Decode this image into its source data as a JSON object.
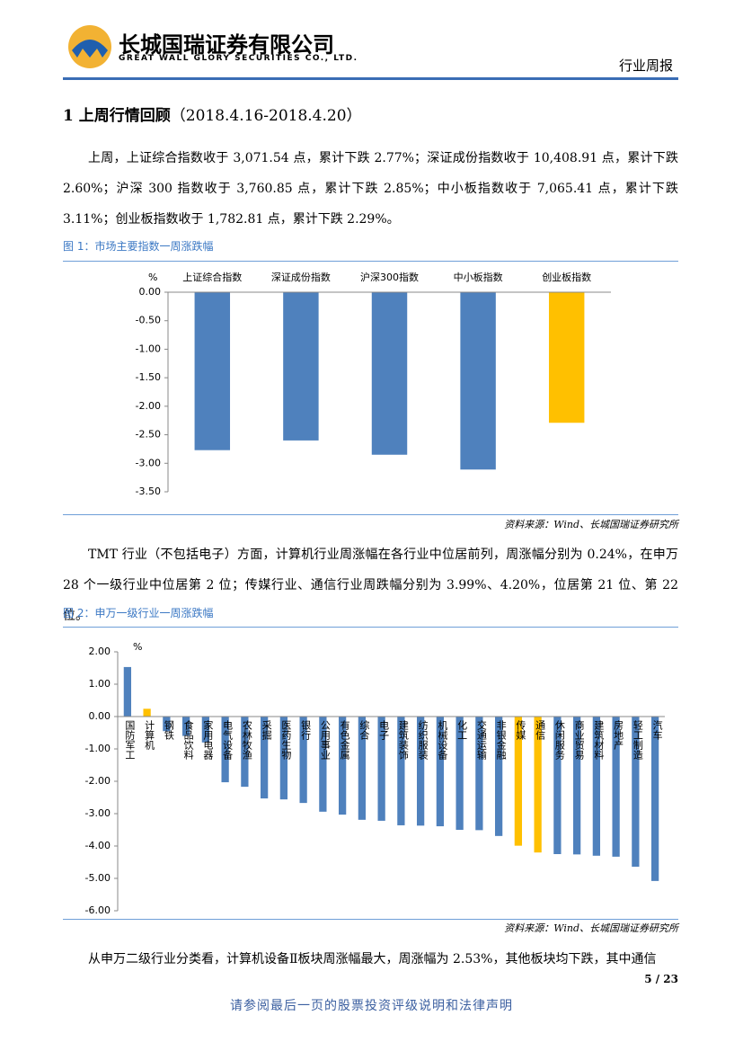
{
  "header": {
    "company_cn": "长城国瑞证券有限公司",
    "company_en": "GREAT WALL GLORY SECURITIES CO., LTD.",
    "doc_type": "行业周报"
  },
  "section": {
    "title": "1 上周行情回顾",
    "period": "（2018.4.16-2018.4.20）"
  },
  "paragraphs": [
    "上周，上证综合指数收于 3,071.54 点，累计下跌 2.77%；深证成份指数收于 10,408.91 点，累计下跌 2.60%；沪深 300 指数收于 3,760.85 点，累计下跌 2.85%；中小板指数收于 7,065.41 点，累计下跌 3.11%；创业板指数收于 1,782.81 点，累计下跌 2.29%。",
    "TMT 行业（不包括电子）方面，计算机行业周涨幅在各行业中位居前列，周涨幅分别为 0.24%，在申万 28 个一级行业中位居第 2 位；传媒行业、通信行业周跌幅分别为 3.99%、4.20%，位居第 21 位、第 22 位。",
    "从申万二级行业分类看，计算机设备Ⅱ板块周涨幅最大，周涨幅为 2.53%，其他板块均下跌，其中通信"
  ],
  "chart_data": [
    {
      "type": "bar",
      "title": "图 1：市场主要指数一周涨跌幅",
      "unit": "%",
      "categories": [
        "上证综合指数",
        "深证成份指数",
        "沪深300指数",
        "中小板指数",
        "创业板指数"
      ],
      "values": [
        -2.77,
        -2.6,
        -2.85,
        -3.11,
        -2.29
      ],
      "colors": [
        "#4f81bd",
        "#4f81bd",
        "#4f81bd",
        "#4f81bd",
        "#ffc000"
      ],
      "ylim": [
        -3.5,
        0
      ],
      "yticks": [
        {
          "value": 0,
          "label": "0.00"
        },
        {
          "value": -0.5,
          "label": "-0.50"
        },
        {
          "value": -1,
          "label": "-1.00"
        },
        {
          "value": -1.5,
          "label": "-1.50"
        },
        {
          "value": -2,
          "label": "-2.00"
        },
        {
          "value": -2.5,
          "label": "-2.50"
        },
        {
          "value": -3,
          "label": "-3.00"
        },
        {
          "value": -3.5,
          "label": "-3.50"
        }
      ],
      "source": "资料来源：Wind、长城国瑞证券研究所"
    },
    {
      "type": "bar",
      "title": "图 2：申万一级行业一周涨跌幅",
      "unit": "%",
      "categories": [
        "国防军工",
        "计算机",
        "钢铁",
        "食品饮料",
        "家用电器",
        "电气设备",
        "农林牧渔",
        "采掘",
        "医药生物",
        "银行",
        "公用事业",
        "有色金属",
        "综合",
        "电子",
        "建筑装饰",
        "纺织服装",
        "机械设备",
        "化工",
        "交通运输",
        "非银金融",
        "传媒",
        "通信",
        "休闲服务",
        "商业贸易",
        "建筑材料",
        "房地产",
        "轻工制造",
        "汽车"
      ],
      "values": [
        1.53,
        0.24,
        -0.45,
        -0.6,
        -0.8,
        -2.03,
        -2.17,
        -2.53,
        -2.56,
        -2.67,
        -2.94,
        -3.03,
        -3.19,
        -3.22,
        -3.36,
        -3.37,
        -3.39,
        -3.5,
        -3.51,
        -3.69,
        -3.99,
        -4.2,
        -4.25,
        -4.26,
        -4.3,
        -4.33,
        -4.64,
        -5.08
      ],
      "colors": [
        "#4f81bd",
        "#ffc000",
        "#4f81bd",
        "#4f81bd",
        "#4f81bd",
        "#4f81bd",
        "#4f81bd",
        "#4f81bd",
        "#4f81bd",
        "#4f81bd",
        "#4f81bd",
        "#4f81bd",
        "#4f81bd",
        "#4f81bd",
        "#4f81bd",
        "#4f81bd",
        "#4f81bd",
        "#4f81bd",
        "#4f81bd",
        "#4f81bd",
        "#ffc000",
        "#ffc000",
        "#4f81bd",
        "#4f81bd",
        "#4f81bd",
        "#4f81bd",
        "#4f81bd",
        "#4f81bd"
      ],
      "ylim": [
        -6,
        2
      ],
      "yticks": [
        {
          "value": 2,
          "label": "2.00"
        },
        {
          "value": 1,
          "label": "1.00"
        },
        {
          "value": 0,
          "label": "0.00"
        },
        {
          "value": -1,
          "label": "-1.00"
        },
        {
          "value": -2,
          "label": "-2.00"
        },
        {
          "value": -3,
          "label": "-3.00"
        },
        {
          "value": -4,
          "label": "-4.00"
        },
        {
          "value": -5,
          "label": "-5.00"
        },
        {
          "value": -6,
          "label": "-6.00"
        }
      ],
      "source": "资料来源：Wind、长城国瑞证券研究所"
    }
  ],
  "page_number": "5 / 23",
  "footer": "请参阅最后一页的股票投资评级说明和法律声明"
}
